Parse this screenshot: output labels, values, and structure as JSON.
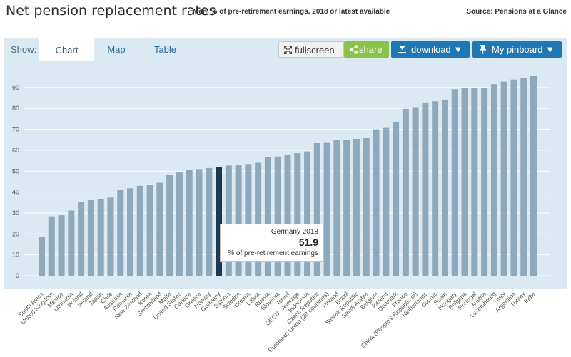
{
  "header": {
    "title": "Net pension replacement rates",
    "subtitle": "Men, % of pre-retirement earnings, 2018 or latest available",
    "source": "Source: Pensions at a Glance"
  },
  "toolbar": {
    "show_label": "Show:",
    "tabs": [
      "Chart",
      "Map",
      "Table"
    ],
    "active_tab": "Chart",
    "fullscreen_label": "fullscreen",
    "share_label": "share",
    "download_label": "download ▼",
    "pinboard_label": "My pinboard ▼"
  },
  "colors": {
    "bar": "#8ea9bc",
    "highlight": "#1c3a52",
    "background": "#dbe9f2",
    "gridline": "#ffffff"
  },
  "tooltip": {
    "country": "Germany 2018",
    "value": "51.9",
    "unit": "% of pre-retirement earnings"
  },
  "chart_data": {
    "type": "bar",
    "title": "Net pension replacement rates",
    "ylim": [
      0,
      100
    ],
    "yticks": [
      0,
      10,
      20,
      30,
      40,
      50,
      60,
      70,
      80,
      90
    ],
    "highlight": "Germany",
    "categories": [
      "South Africa",
      "United Kingdom",
      "Mexico",
      "Lithuania",
      "Poland",
      "Ireland",
      "Japan",
      "Chile",
      "Australia",
      "Romania",
      "New Zealand",
      "Korea",
      "Switzerland",
      "Malta",
      "United States",
      "Canada",
      "Greece",
      "Norway",
      "Germany",
      "Estonia",
      "Sweden",
      "Croatia",
      "Latvia",
      "Russia",
      "Slovenia",
      "Israel",
      "OECD - Average",
      "Indonesia",
      "Czech Republic",
      "European Union (28 countries)",
      "Finland",
      "Brazil",
      "Slovak Republic",
      "Saudi Arabia",
      "Belgium",
      "Iceland",
      "Denmark",
      "France",
      "China (People's Republic of)",
      "Netherlands",
      "Cyprus",
      "Spain",
      "Hungary",
      "Bulgaria",
      "Portugal",
      "Austria",
      "Luxembourg",
      "Italy",
      "Argentina",
      "Turkey",
      "India"
    ],
    "values": [
      18.5,
      28.4,
      28.9,
      31.2,
      35.2,
      36.2,
      36.8,
      37.4,
      41.0,
      41.8,
      43.0,
      43.4,
      44.4,
      48.2,
      49.4,
      50.7,
      51.0,
      51.5,
      51.9,
      52.7,
      53.0,
      53.4,
      54.0,
      56.6,
      57.0,
      57.6,
      58.6,
      59.4,
      63.4,
      63.8,
      64.8,
      65.0,
      65.4,
      66.0,
      70.0,
      71.0,
      73.6,
      79.8,
      80.6,
      82.8,
      83.4,
      84.2,
      89.2,
      89.6,
      89.6,
      89.8,
      91.6,
      92.8,
      93.8,
      94.6,
      95.6
    ]
  }
}
